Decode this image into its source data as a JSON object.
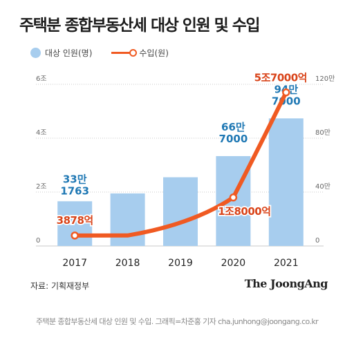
{
  "title": "주택분 종합부동산세 대상 인원 및 수입",
  "legend": {
    "bar_label": "대상 인원(명)",
    "line_label": "수입(원)"
  },
  "colors": {
    "bar": "#a7cdee",
    "line": "#f05a22",
    "bar_value": "#1f78b4",
    "line_value": "#d9441a"
  },
  "source": "자료: 기획재정부",
  "brand": "The JoongAng",
  "caption": "주택분 종합부동산세 대상 인원 및 수입. 그래픽=차준홍 기자 cha.junhong@joongang.co.kr",
  "chart_data": {
    "type": "bar+line",
    "categories": [
      "2017",
      "2018",
      "2019",
      "2020",
      "2021"
    ],
    "bars": {
      "axis": "right",
      "values": [
        331763,
        390000,
        510000,
        667000,
        947000
      ],
      "labels": [
        [
          "33만",
          "1763"
        ],
        null,
        null,
        [
          "66만",
          "7000"
        ],
        [
          "94만",
          "7000"
        ]
      ]
    },
    "line": {
      "axis": "left",
      "values": [
        0.3878,
        0.39,
        0.95,
        1.8,
        5.7
      ],
      "labels": [
        "3878억",
        null,
        null,
        "1조8000억",
        "5조7000억"
      ],
      "marked_points": [
        0,
        3,
        4
      ]
    },
    "left_axis": {
      "range": [
        0,
        6
      ],
      "ticks": [
        0,
        2,
        4,
        6
      ],
      "tick_labels": [
        "0",
        "2조",
        "4조",
        "6조"
      ]
    },
    "right_axis": {
      "range": [
        0,
        1200000
      ],
      "ticks": [
        0,
        400000,
        800000,
        1200000
      ],
      "tick_labels": [
        "0",
        "40만",
        "80만",
        "120만"
      ]
    },
    "grid": true
  }
}
